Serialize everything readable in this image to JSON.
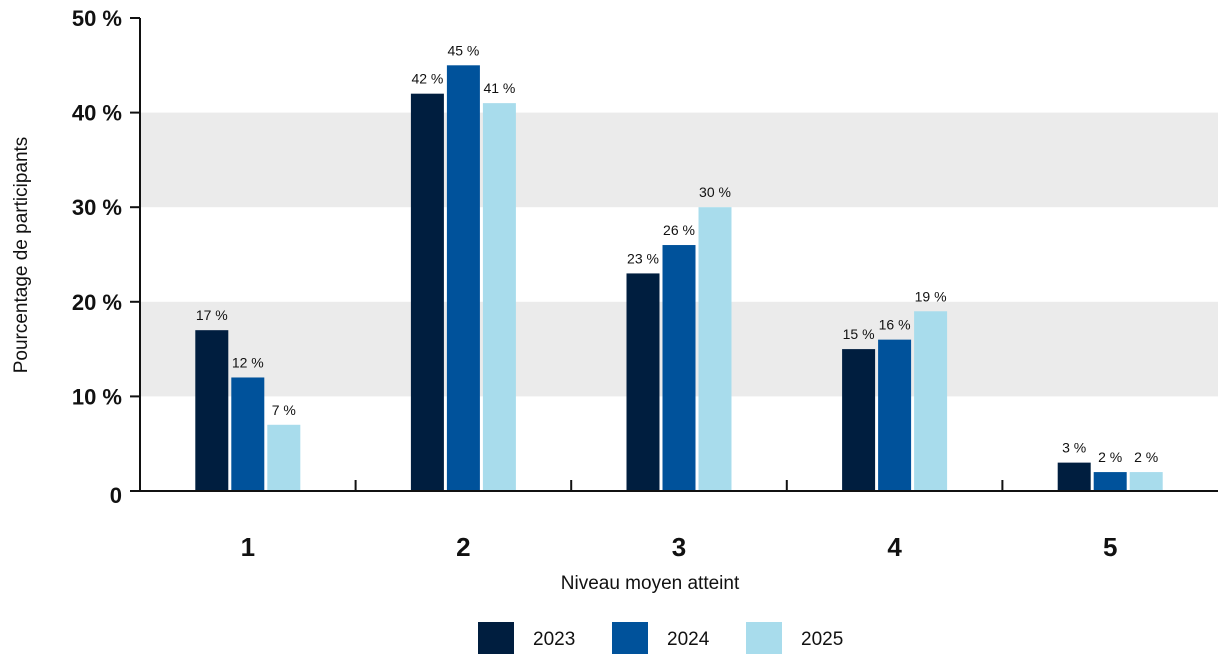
{
  "chart_data": {
    "type": "bar",
    "categories": [
      "1",
      "2",
      "3",
      "4",
      "5"
    ],
    "series": [
      {
        "name": "2023",
        "color": "#001e3f",
        "values": [
          17,
          42,
          23,
          15,
          3
        ],
        "labels": [
          "17 %",
          "42 %",
          "23 %",
          "15 %",
          "3 %"
        ]
      },
      {
        "name": "2024",
        "color": "#00529b",
        "values": [
          12,
          45,
          26,
          16,
          2
        ],
        "labels": [
          "12 %",
          "45 %",
          "26 %",
          "16 %",
          "2 %"
        ]
      },
      {
        "name": "2025",
        "color": "#a8dcec",
        "values": [
          7,
          41,
          30,
          19,
          2
        ],
        "labels": [
          "7 %",
          "41 %",
          "30 %",
          "19 %",
          "2 %"
        ]
      }
    ],
    "xlabel": "Niveau moyen atteint",
    "ylabel": "Pourcentage de participants",
    "ylim": [
      0,
      50
    ],
    "yticks": [
      0,
      10,
      20,
      30,
      40,
      50
    ],
    "ytick_labels": [
      "0",
      "10 %",
      "20 %",
      "30 %",
      "40 %",
      "50 %"
    ],
    "grid": "alternating horizontal bands",
    "band_color": "#ebebeb",
    "legend_position": "bottom-center"
  }
}
